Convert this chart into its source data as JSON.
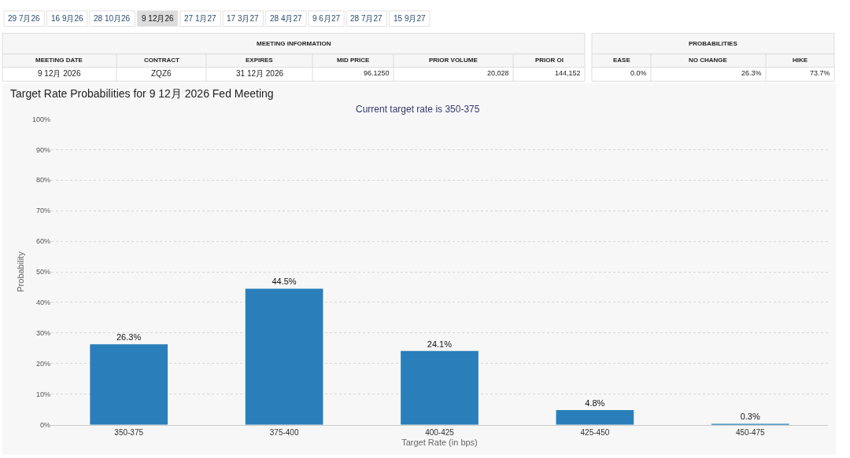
{
  "chart_data": [
    {
      "type": "other",
      "annotations": [
        "29 7月26",
        "16 9月26",
        "28 10月26",
        "9 12月26",
        "27 1月27",
        "17 3月27",
        "28 4月27",
        "9 6月27",
        "28 7月27",
        "15 9月27",
        "MEETING INFORMATION",
        "MEETING DATE",
        "CONTRACT",
        "EXPIRES",
        "MID PRICE",
        "PRIOR VOLUME",
        "PRIOR OI",
        "9 12月 2026",
        "ZQZ6",
        "31 12月 2026",
        "96.1250",
        "20,028",
        "144,152",
        "PROBABILITIES",
        "EASE",
        "NO CHANGE",
        "HIKE",
        "0.0%",
        "26.3%",
        "73.7%"
      ]
    },
    {
      "type": "bar",
      "title": "Target Rate Probabilities for 9 12月 2026 Fed Meeting",
      "subtitle": "Current target rate is 350-375",
      "xlabel": "Target Rate (in bps)",
      "ylabel": "Probability",
      "categories": [
        "350-375",
        "375-400",
        "400-425",
        "425-450",
        "450-475"
      ],
      "values": [
        26.3,
        44.5,
        24.1,
        4.8,
        0.3
      ],
      "value_labels": [
        "26.3%",
        "44.5%",
        "24.1%",
        "4.8%",
        "0.3%"
      ],
      "color": "#2a7fba",
      "ylim": [
        0,
        100
      ],
      "yticks": [
        {
          "value": 0,
          "label": "0%"
        },
        {
          "value": 10,
          "label": "10%"
        },
        {
          "value": 20,
          "label": "20%"
        },
        {
          "value": 30,
          "label": "30%"
        },
        {
          "value": 40,
          "label": "40%"
        },
        {
          "value": 50,
          "label": "50%"
        },
        {
          "value": 60,
          "label": "60%"
        },
        {
          "value": 70,
          "label": "70%"
        },
        {
          "value": 80,
          "label": "80%"
        },
        {
          "value": 90,
          "label": "90%"
        },
        {
          "value": 100,
          "label": "100%"
        }
      ],
      "grid": "y"
    }
  ]
}
